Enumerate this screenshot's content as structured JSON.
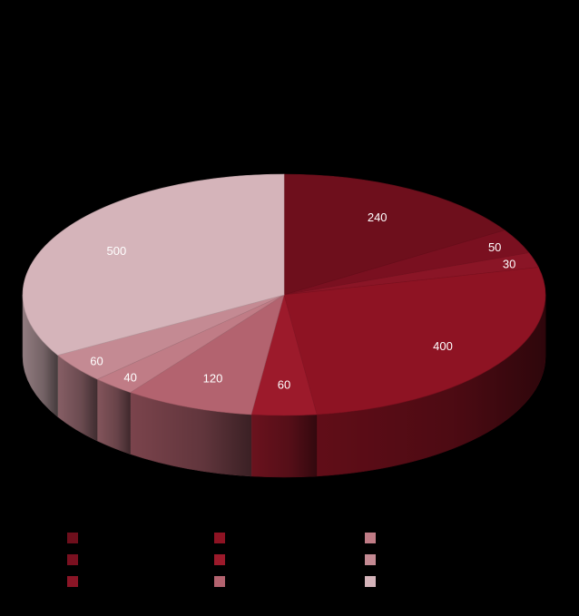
{
  "chart_data": {
    "type": "pie",
    "title": "",
    "subtitle": "",
    "slices": [
      {
        "label": "",
        "value": 240,
        "color": "#6e0f1c"
      },
      {
        "label": "",
        "value": 50,
        "color": "#7a1020"
      },
      {
        "label": "",
        "value": 30,
        "color": "#8a1526"
      },
      {
        "label": "",
        "value": 400,
        "color": "#8e1323"
      },
      {
        "label": "",
        "value": 60,
        "color": "#9c1a2b"
      },
      {
        "label": "",
        "value": 120,
        "color": "#b3636f"
      },
      {
        "label": "",
        "value": 40,
        "color": "#c07c86"
      },
      {
        "label": "",
        "value": 60,
        "color": "#c48a93"
      },
      {
        "label": "",
        "value": 500,
        "color": "#d5b4ba"
      }
    ],
    "data_labels": [
      "240",
      "50",
      "30",
      "400",
      "60",
      "120",
      "40",
      "60",
      "500"
    ],
    "legend_placement": "bottom",
    "legend_columns": 3,
    "legend_colors": [
      "#6e0f1c",
      "#7a1020",
      "#8a1526",
      "#8e1323",
      "#9c1a2b",
      "#b3636f",
      "#c07c86",
      "#c48a93",
      "#d5b4ba"
    ],
    "background": "#000000",
    "style": "3d"
  }
}
